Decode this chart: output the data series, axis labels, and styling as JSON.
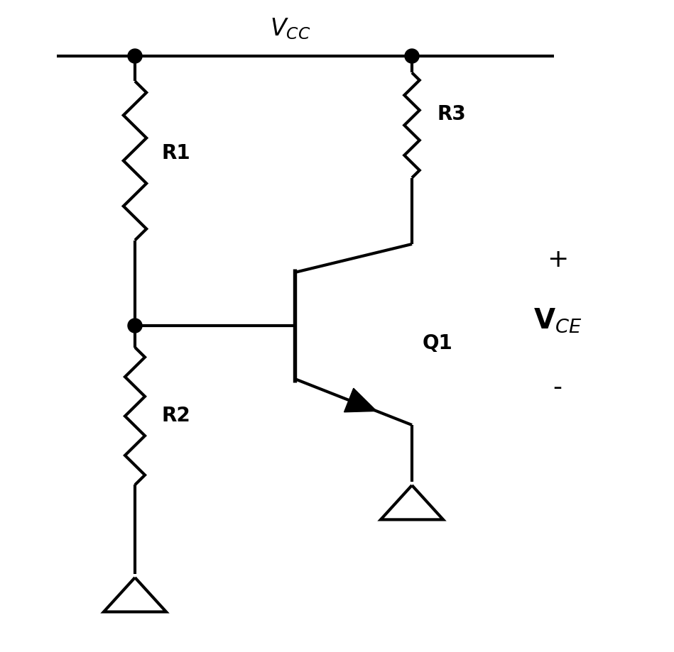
{
  "background_color": "#ffffff",
  "line_color": "#000000",
  "line_width": 3.0,
  "vcc_label": "$V_{CC}$",
  "vce_label": "$\\mathbf{V}_{CE}$",
  "r1_label": "R1",
  "r2_label": "R2",
  "r3_label": "R3",
  "q1_label": "Q1",
  "plus_label": "+",
  "minus_label": "-",
  "vcc_fontsize": 24,
  "label_fontsize": 20,
  "vce_fontsize": 28,
  "pm_fontsize": 26
}
